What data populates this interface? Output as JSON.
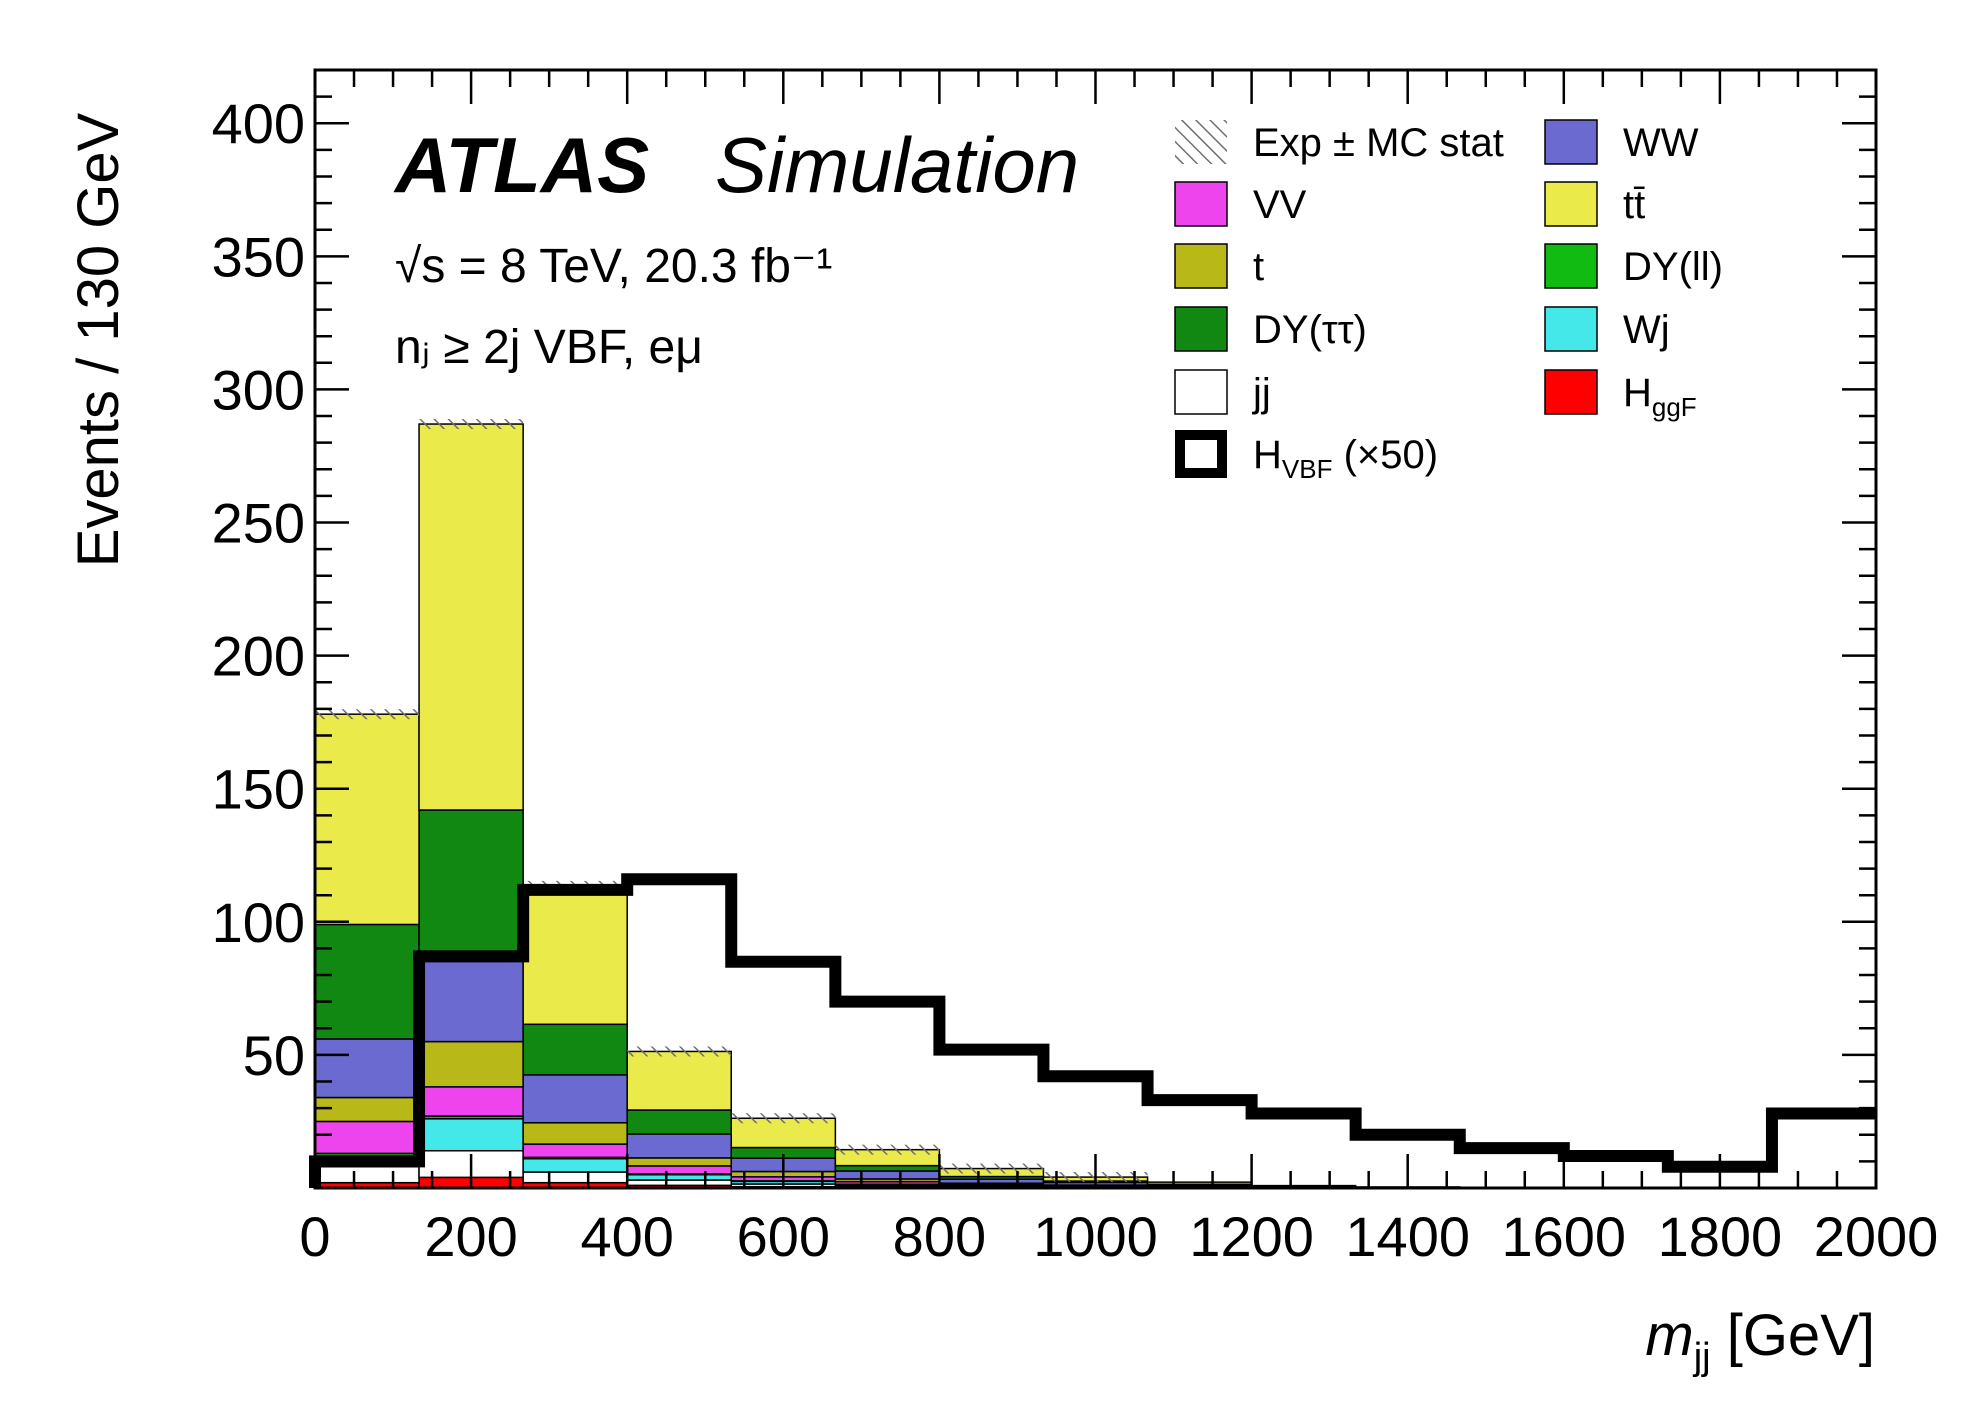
{
  "chart_data": {
    "type": "stacked-histogram",
    "experiment": "ATLAS",
    "label": "Simulation",
    "energy_line": "√s = 8 TeV, 20.3 fb⁻¹",
    "selection_line": "nⱼ ≥ 2j  VBF, eμ",
    "xlabel": "m",
    "xlabel_sub": "jj",
    "xlabel_unit": " [GeV]",
    "ylabel": "Events / 130 GeV",
    "xlim": [
      0,
      2000
    ],
    "ylim": [
      0,
      420
    ],
    "x_ticks": [
      0,
      200,
      400,
      600,
      800,
      1000,
      1200,
      1400,
      1600,
      1800,
      2000
    ],
    "y_ticks": [
      50,
      100,
      150,
      200,
      250,
      300,
      350,
      400
    ],
    "bin_edges": [
      0,
      133.3,
      266.7,
      400,
      533.3,
      666.7,
      800,
      933.3,
      1066.7,
      1200,
      1333.3,
      1466.7,
      1600,
      1733.3,
      1866.7,
      2000
    ],
    "stack_order": [
      "HggF",
      "jj",
      "Wj",
      "DYll",
      "VV",
      "t",
      "WW",
      "DYtautau",
      "ttbar"
    ],
    "series": [
      {
        "id": "HggF",
        "name": "H",
        "sub": "ggF",
        "color": "#ff0000",
        "values": [
          2,
          4,
          2,
          1,
          0.5,
          0.3,
          0.2,
          0.1,
          0,
          0,
          0,
          0,
          0,
          0,
          0
        ]
      },
      {
        "id": "jj",
        "name": "jj",
        "color": "#ffffff",
        "values": [
          6,
          10,
          4,
          2,
          1,
          0.5,
          0.3,
          0.2,
          0.1,
          0,
          0,
          0,
          0,
          0,
          0
        ]
      },
      {
        "id": "Wj",
        "name": "Wj",
        "color": "#44e8e8",
        "values": [
          4,
          12,
          5,
          2,
          1,
          0.5,
          0.3,
          0.2,
          0.1,
          0,
          0,
          0,
          0,
          0,
          0
        ]
      },
      {
        "id": "DYll",
        "name": "DY(ll)",
        "color": "#11bb11",
        "values": [
          1,
          1,
          0.5,
          0.3,
          0.2,
          0.1,
          0,
          0,
          0,
          0,
          0,
          0,
          0,
          0,
          0
        ]
      },
      {
        "id": "VV",
        "name": "VV",
        "color": "#ee44ee",
        "values": [
          12,
          11,
          5,
          3,
          1.5,
          1,
          0.5,
          0.3,
          0.2,
          0,
          0,
          0,
          0,
          0,
          0
        ]
      },
      {
        "id": "t",
        "name": "t",
        "color": "#b8b818",
        "values": [
          9,
          17,
          8,
          3,
          2,
          1,
          0.5,
          0.3,
          0.2,
          0,
          0,
          0,
          0,
          0,
          0
        ]
      },
      {
        "id": "WW",
        "name": "WW",
        "color": "#6a6ad0",
        "values": [
          22,
          34,
          18,
          9,
          5,
          3,
          1.5,
          1,
          0.5,
          0.3,
          0.2,
          0.1,
          0,
          0,
          0
        ]
      },
      {
        "id": "DYtautau",
        "name": "DY(ττ)",
        "color": "#118811",
        "values": [
          43,
          53,
          19,
          9,
          4,
          2,
          1,
          0.5,
          0.3,
          0.2,
          0,
          0,
          0,
          0,
          0
        ]
      },
      {
        "id": "ttbar",
        "name": "tt̄",
        "color": "#eaea4a",
        "values": [
          79,
          145,
          52,
          22,
          11,
          6,
          3,
          1.5,
          0.8,
          0.4,
          0.2,
          0.1,
          0.1,
          0,
          0
        ]
      }
    ],
    "exp_mc_stat": {
      "name": "Exp ± MC stat",
      "color": "#888888"
    },
    "signal": {
      "name": "H",
      "sub": "VBF",
      "suffix": " (×50)",
      "color": "#000000",
      "values": [
        10,
        87,
        112,
        116,
        85,
        70,
        52,
        42,
        33,
        28,
        20,
        15,
        12,
        8,
        28
      ]
    },
    "legend_placement": "top-right",
    "grid": false
  }
}
